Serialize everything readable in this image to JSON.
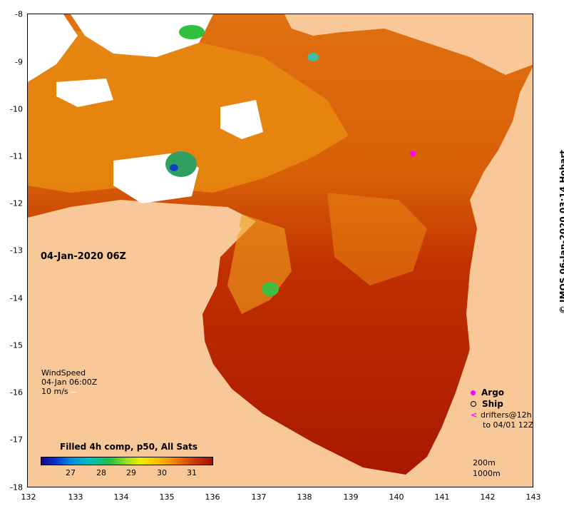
{
  "map": {
    "date_label": "04-Jan-2020 06Z",
    "x_axis_ticks": [
      "132",
      "133",
      "134",
      "135",
      "136",
      "137",
      "138",
      "139",
      "140",
      "141",
      "142",
      "143"
    ],
    "y_axis_ticks": [
      "-8",
      "-9",
      "-10",
      "-11",
      "-12",
      "-13",
      "-14",
      "-15",
      "-16",
      "-17",
      "-18"
    ],
    "credit": "© IMOS 06-Jan-2020 03:14 Hobart"
  },
  "wind_legend": {
    "title": "WindSpeed",
    "time": "04-Jan 06:00Z",
    "scale": "10 m/s"
  },
  "colorbar": {
    "title": "Filled 4h comp, p50, All Sats",
    "ticks": [
      "27",
      "28",
      "29",
      "30",
      "31"
    ]
  },
  "symbol_legend": {
    "argo": "Argo",
    "ship": "Ship",
    "drifters_line1": "drifters@12h",
    "drifters_line2": "to 04/01 12Z"
  },
  "scale_text": {
    "depth1": "200m",
    "depth2": "1000m"
  },
  "colors": {
    "land": "#f8c898",
    "sea_warm": "#b02000",
    "sea_mid": "#e06000",
    "sea_cool": "#f0a000",
    "argo": "#ff00ff"
  }
}
